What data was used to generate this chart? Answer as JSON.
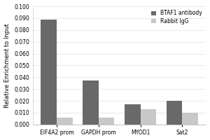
{
  "categories": [
    "EIF4A2 prom",
    "GAPDH prom",
    "MYOD1",
    "Sat2"
  ],
  "btaf1_values": [
    0.089,
    0.037,
    0.017,
    0.02
  ],
  "igg_values": [
    0.006,
    0.006,
    0.013,
    0.01
  ],
  "btaf1_color": "#696969",
  "igg_color": "#c8c8c8",
  "ylabel": "Relative Enrichment to Input",
  "ylim": [
    0.0,
    0.1
  ],
  "yticks": [
    0.0,
    0.01,
    0.02,
    0.03,
    0.04,
    0.05,
    0.06,
    0.07,
    0.08,
    0.09,
    0.1
  ],
  "legend_btaf1": "BTAF1 antibody",
  "legend_igg": "Rabbit IgG",
  "bar_width": 0.38,
  "background_color": "#ffffff",
  "tick_fontsize": 5.5,
  "label_fontsize": 6,
  "legend_fontsize": 5.5,
  "figure_width": 3.0,
  "figure_height": 2.0
}
